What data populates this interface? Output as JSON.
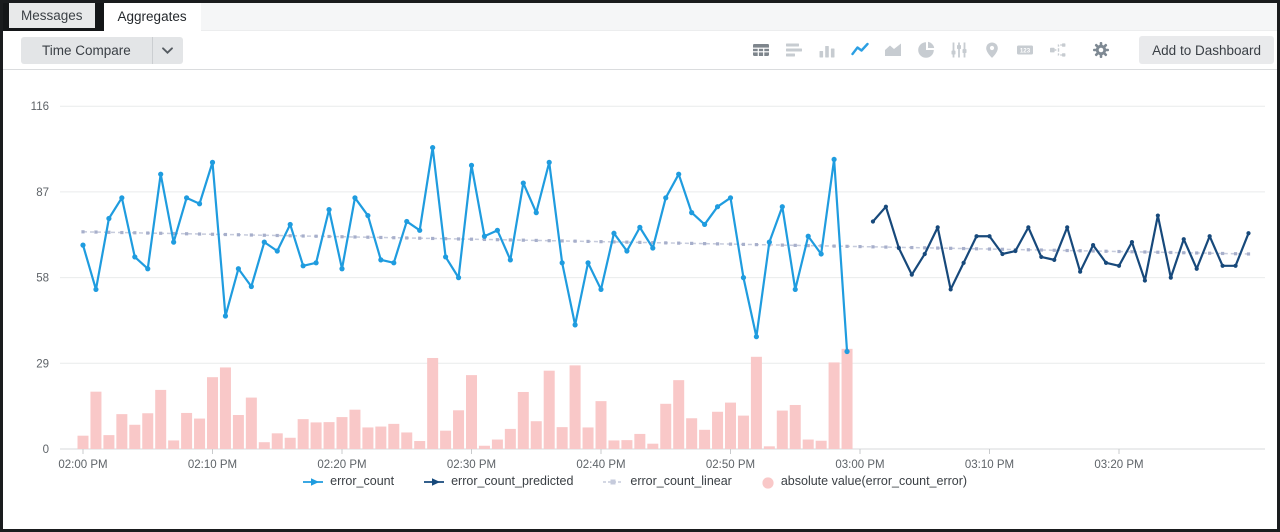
{
  "tabs": [
    {
      "label": "Messages",
      "active": false
    },
    {
      "label": "Aggregates",
      "active": true
    }
  ],
  "toolbar": {
    "time_compare_label": "Time Compare",
    "add_to_dashboard_label": "Add to Dashboard",
    "view_icons": [
      "table-view",
      "bar-chart-horizontal",
      "column-chart",
      "line-chart",
      "area-chart",
      "pie-chart",
      "histogram-sliders",
      "map-pin",
      "single-value",
      "flow-diagram"
    ],
    "selected_view": "line-chart"
  },
  "colors": {
    "accent_blue": "#1F9CDF",
    "dark_blue": "#17497B",
    "linear_gray": "#C6CBDC",
    "linear_marker": "#A7AFCB",
    "bar_pink": "#F9C8C8",
    "grid": "#E9EBEC",
    "axis_text": "#5E6368"
  },
  "chart_data": {
    "type": "line+bar",
    "title": "",
    "xlabel": "",
    "ylabel": "",
    "ylim": [
      0,
      116
    ],
    "grid": "horizontal",
    "legend_position": "bottom",
    "y_axis": {
      "ticks": [
        0,
        29,
        58,
        87,
        116
      ]
    },
    "x_axis": {
      "tick_labels": [
        "02:00 PM",
        "02:10 PM",
        "02:20 PM",
        "02:30 PM",
        "02:40 PM",
        "02:50 PM",
        "03:00 PM",
        "03:10 PM",
        "03:20 PM"
      ],
      "tick_minutes": [
        0,
        10,
        20,
        30,
        40,
        50,
        60,
        70,
        80
      ]
    },
    "series": [
      {
        "name": "error_count",
        "type": "line",
        "color": "#1F9CDF",
        "start_minute": 0,
        "step_minutes": 1,
        "values": [
          69,
          54,
          78,
          85,
          65,
          61,
          93,
          70,
          85,
          83,
          97,
          45,
          61,
          55,
          70,
          67,
          76,
          62,
          63,
          81,
          61,
          85,
          79,
          64,
          63,
          77,
          74,
          102,
          65,
          58,
          96,
          72,
          74,
          64,
          90,
          80,
          97,
          63,
          42,
          63,
          54,
          73,
          67,
          75,
          68,
          85,
          93,
          80,
          76,
          82,
          85,
          58,
          38,
          70,
          82,
          54,
          72,
          66,
          98,
          33
        ]
      },
      {
        "name": "error_count_predicted",
        "type": "line",
        "color": "#17497B",
        "start_minute": 61,
        "step_minutes": 1,
        "values": [
          77,
          82,
          68,
          59,
          66,
          75,
          54,
          63,
          72,
          72,
          66,
          67,
          75,
          65,
          64,
          75,
          60,
          69,
          63,
          62,
          70,
          57,
          79,
          58,
          71,
          61,
          72,
          62,
          62,
          73
        ]
      },
      {
        "name": "error_count_linear",
        "type": "line-dashed",
        "color": "#C6CBDC",
        "marker_color": "#A7AFCB",
        "start_minute": 0,
        "end_minute": 90,
        "start_value": 73.5,
        "end_value": 66
      },
      {
        "name": "absolute value(error_count_error)",
        "type": "bar",
        "color": "#F9C8C8",
        "start_minute": 0,
        "step_minutes": 1,
        "values": [
          4.5,
          19.4,
          4.7,
          11.8,
          8.2,
          12.1,
          20,
          2.9,
          12.2,
          10.3,
          24.3,
          27.6,
          11.5,
          17.4,
          2.3,
          5.3,
          3.8,
          10.1,
          9,
          9.1,
          10.8,
          13.3,
          7.3,
          7.6,
          8.5,
          5.6,
          2.7,
          30.8,
          6.2,
          13.1,
          25,
          1.1,
          3.2,
          6.8,
          19.3,
          9.4,
          26.5,
          7.4,
          28.3,
          7.3,
          16.2,
          2.9,
          3,
          5.1,
          1.8,
          15.3,
          23.3,
          10.4,
          6.5,
          12.6,
          15.7,
          11.3,
          31.2,
          0.9,
          13,
          14.9,
          3.2,
          2.8,
          29.3,
          33.9
        ]
      }
    ]
  }
}
